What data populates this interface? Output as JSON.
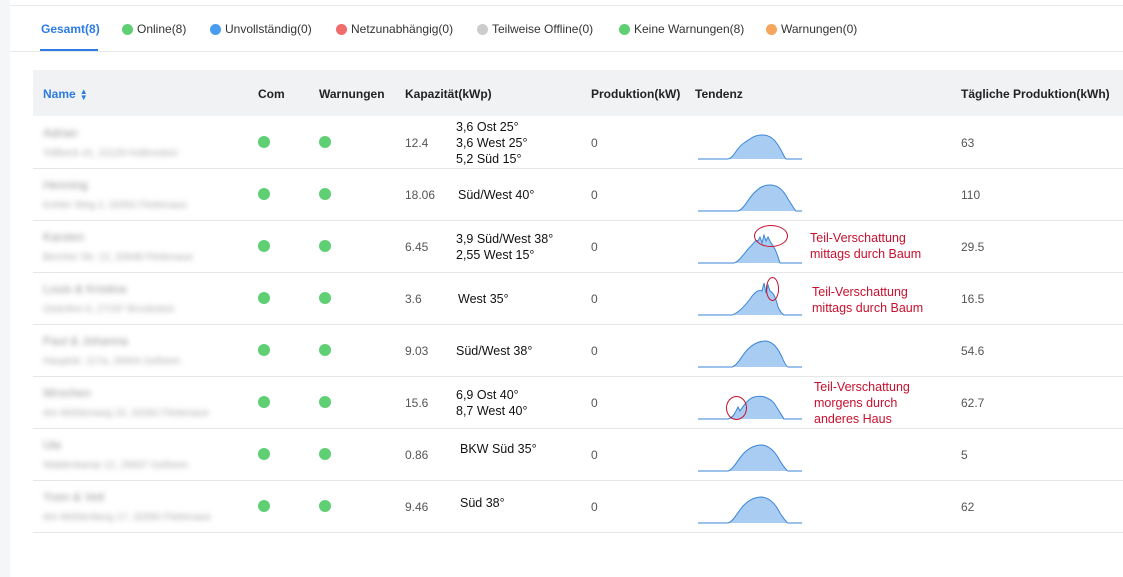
{
  "tabs": [
    {
      "label": "Gesamt(8)",
      "color": "",
      "active": true
    },
    {
      "label": "Online(8)",
      "color": "#5fcf74"
    },
    {
      "label": "Unvollständig(0)",
      "color": "#4a9cf0"
    },
    {
      "label": "Netzunabhängig(0)",
      "color": "#f06b6b"
    },
    {
      "label": "Teilweise Offline(0)",
      "color": "#cccccc"
    },
    {
      "label": "Keine Warnungen(8)",
      "color": "#5fcf74"
    },
    {
      "label": "Warnungen(0)",
      "color": "#f5a55c"
    }
  ],
  "table": {
    "headers": {
      "name": "Name",
      "com": "Com",
      "warnungen": "Warnungen",
      "kapazitaet": "Kapazität(kWp)",
      "produktion": "Produktion(kW)",
      "tendenz": "Tendenz",
      "taeglich": "Tägliche Produktion(kWh)"
    },
    "sort_icon": "sort-asc-icon",
    "rows": [
      {
        "name": "Adrian",
        "address": "Tollbeck 41, 21129 Hollenstein",
        "capacity": "12.4",
        "orientation": [
          "3,6 Ost 25°",
          "3,6 West 25°",
          "5,2 Süd 15°"
        ],
        "production": "0",
        "daily": "63",
        "note": []
      },
      {
        "name": "Henning",
        "address": "Kohler Weg 2, 32062 Flettenaue",
        "capacity": "18.06",
        "orientation": [
          "Süd/West 40°"
        ],
        "production": "0",
        "daily": "110",
        "note": []
      },
      {
        "name": "Karsten",
        "address": "Bercher Str. 12, 33948 Flettenaue",
        "capacity": "6.45",
        "orientation": [
          "3,9 Süd/West 38°",
          "2,55 West 15°"
        ],
        "production": "0",
        "daily": "29.5",
        "note": [
          "Teil-Verschattung",
          "mittags durch Baum"
        ]
      },
      {
        "name": "Louis & Kristina",
        "address": "Osterlinn 6, 27197 Brookstein",
        "capacity": "3.6",
        "orientation": [
          "West 35°"
        ],
        "production": "0",
        "daily": "16.5",
        "note": [
          "Teil-Verschattung",
          "mittags durch Baum"
        ]
      },
      {
        "name": "Paul & Johanna",
        "address": "Hauptstr. 117a, 26604 Gelheim",
        "capacity": "9.03",
        "orientation": [
          "Süd/West 38°"
        ],
        "production": "0",
        "daily": "54.6",
        "note": []
      },
      {
        "name": "Wrochen",
        "address": "Am Mühlenweg 15, 32062 Flettenaue",
        "capacity": "15.6",
        "orientation": [
          "6,9 Ost 40°",
          "8,7 West 40°"
        ],
        "production": "0",
        "daily": "62.7",
        "note": [
          "Teil-Verschattung",
          "morgens durch",
          "anderes Haus"
        ]
      },
      {
        "name": "Ute",
        "address": "Waldenkamp 12, 29937 Gelheim",
        "capacity": "0.86",
        "orientation": [
          "BKW Süd 35°"
        ],
        "production": "0",
        "daily": "5",
        "note": []
      },
      {
        "name": "Yven & Veit",
        "address": "Am Mühlenberg 17, 32060 Flettenaue",
        "capacity": "9.46",
        "orientation": [
          "Süd 38°"
        ],
        "production": "0",
        "daily": "62",
        "note": []
      }
    ]
  }
}
